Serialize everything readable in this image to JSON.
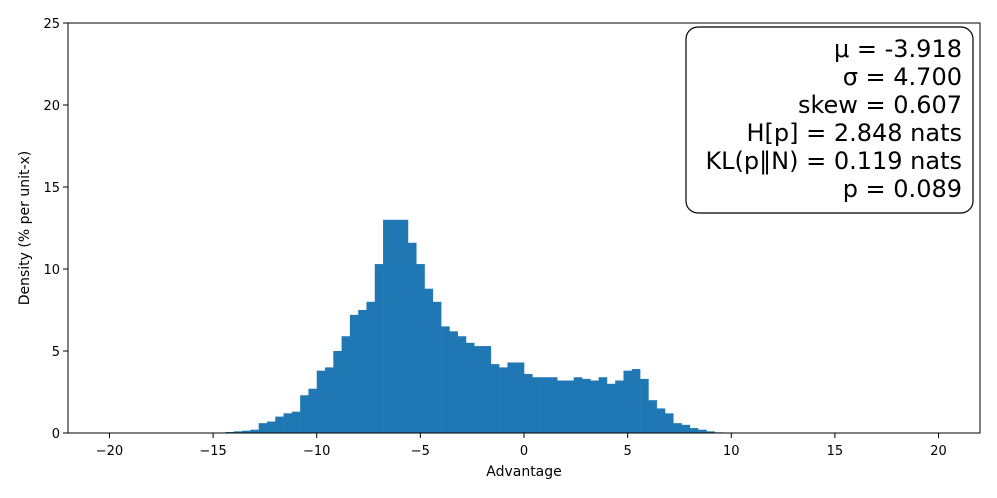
{
  "chart_data": {
    "type": "bar",
    "xlabel": "Advantage",
    "ylabel": "Density (% per unit-x)",
    "xlim": [
      -22,
      22
    ],
    "ylim": [
      0,
      25
    ],
    "x_ticks": [
      -20,
      -15,
      -10,
      -5,
      0,
      5,
      10,
      15,
      20
    ],
    "x_tick_labels": [
      "−20",
      "−15",
      "−10",
      "−5",
      "0",
      "5",
      "10",
      "15",
      "20"
    ],
    "y_ticks": [
      0,
      5,
      10,
      15,
      20,
      25
    ],
    "y_tick_labels": [
      "0",
      "5",
      "10",
      "15",
      "20",
      "25"
    ],
    "bar_color": "#1f77b4",
    "bin_width": 0.4,
    "bins": [
      [
        -14.4,
        0.06
      ],
      [
        -14.0,
        0.1
      ],
      [
        -13.6,
        0.14
      ],
      [
        -13.2,
        0.2
      ],
      [
        -12.8,
        0.6
      ],
      [
        -12.4,
        0.7
      ],
      [
        -12.0,
        1.0
      ],
      [
        -11.6,
        1.2
      ],
      [
        -11.2,
        1.3
      ],
      [
        -10.8,
        2.3
      ],
      [
        -10.4,
        2.7
      ],
      [
        -10.0,
        3.8
      ],
      [
        -9.6,
        4.0
      ],
      [
        -9.2,
        5.0
      ],
      [
        -8.8,
        5.9
      ],
      [
        -8.4,
        7.2
      ],
      [
        -8.0,
        7.5
      ],
      [
        -7.6,
        8.0
      ],
      [
        -7.2,
        10.3
      ],
      [
        -6.8,
        13.0
      ],
      [
        -6.4,
        13.0
      ],
      [
        -6.0,
        13.0
      ],
      [
        -5.6,
        11.6
      ],
      [
        -5.2,
        10.3
      ],
      [
        -4.8,
        8.8
      ],
      [
        -4.4,
        8.0
      ],
      [
        -4.0,
        6.5
      ],
      [
        -3.6,
        6.2
      ],
      [
        -3.2,
        5.9
      ],
      [
        -2.8,
        5.5
      ],
      [
        -2.4,
        5.3
      ],
      [
        -2.0,
        5.3
      ],
      [
        -1.6,
        4.2
      ],
      [
        -1.2,
        4.0
      ],
      [
        -0.8,
        4.3
      ],
      [
        -0.4,
        4.3
      ],
      [
        0.0,
        3.6
      ],
      [
        0.4,
        3.4
      ],
      [
        0.8,
        3.4
      ],
      [
        1.2,
        3.4
      ],
      [
        1.6,
        3.2
      ],
      [
        2.0,
        3.2
      ],
      [
        2.4,
        3.4
      ],
      [
        2.8,
        3.3
      ],
      [
        3.2,
        3.2
      ],
      [
        3.6,
        3.4
      ],
      [
        4.0,
        3.0
      ],
      [
        4.4,
        3.2
      ],
      [
        4.8,
        3.8
      ],
      [
        5.2,
        3.9
      ],
      [
        5.6,
        3.3
      ],
      [
        6.0,
        2.0
      ],
      [
        6.4,
        1.5
      ],
      [
        6.8,
        1.2
      ],
      [
        7.2,
        0.6
      ],
      [
        7.6,
        0.5
      ],
      [
        8.0,
        0.3
      ],
      [
        8.4,
        0.2
      ],
      [
        8.8,
        0.1
      ],
      [
        9.2,
        0.04
      ]
    ]
  },
  "stats_box": {
    "lines": [
      "μ = -3.918",
      "σ = 4.700",
      "skew = 0.607",
      "H[p] = 2.848 nats",
      "KL(p‖N) = 0.119 nats",
      "p = 0.089"
    ]
  }
}
